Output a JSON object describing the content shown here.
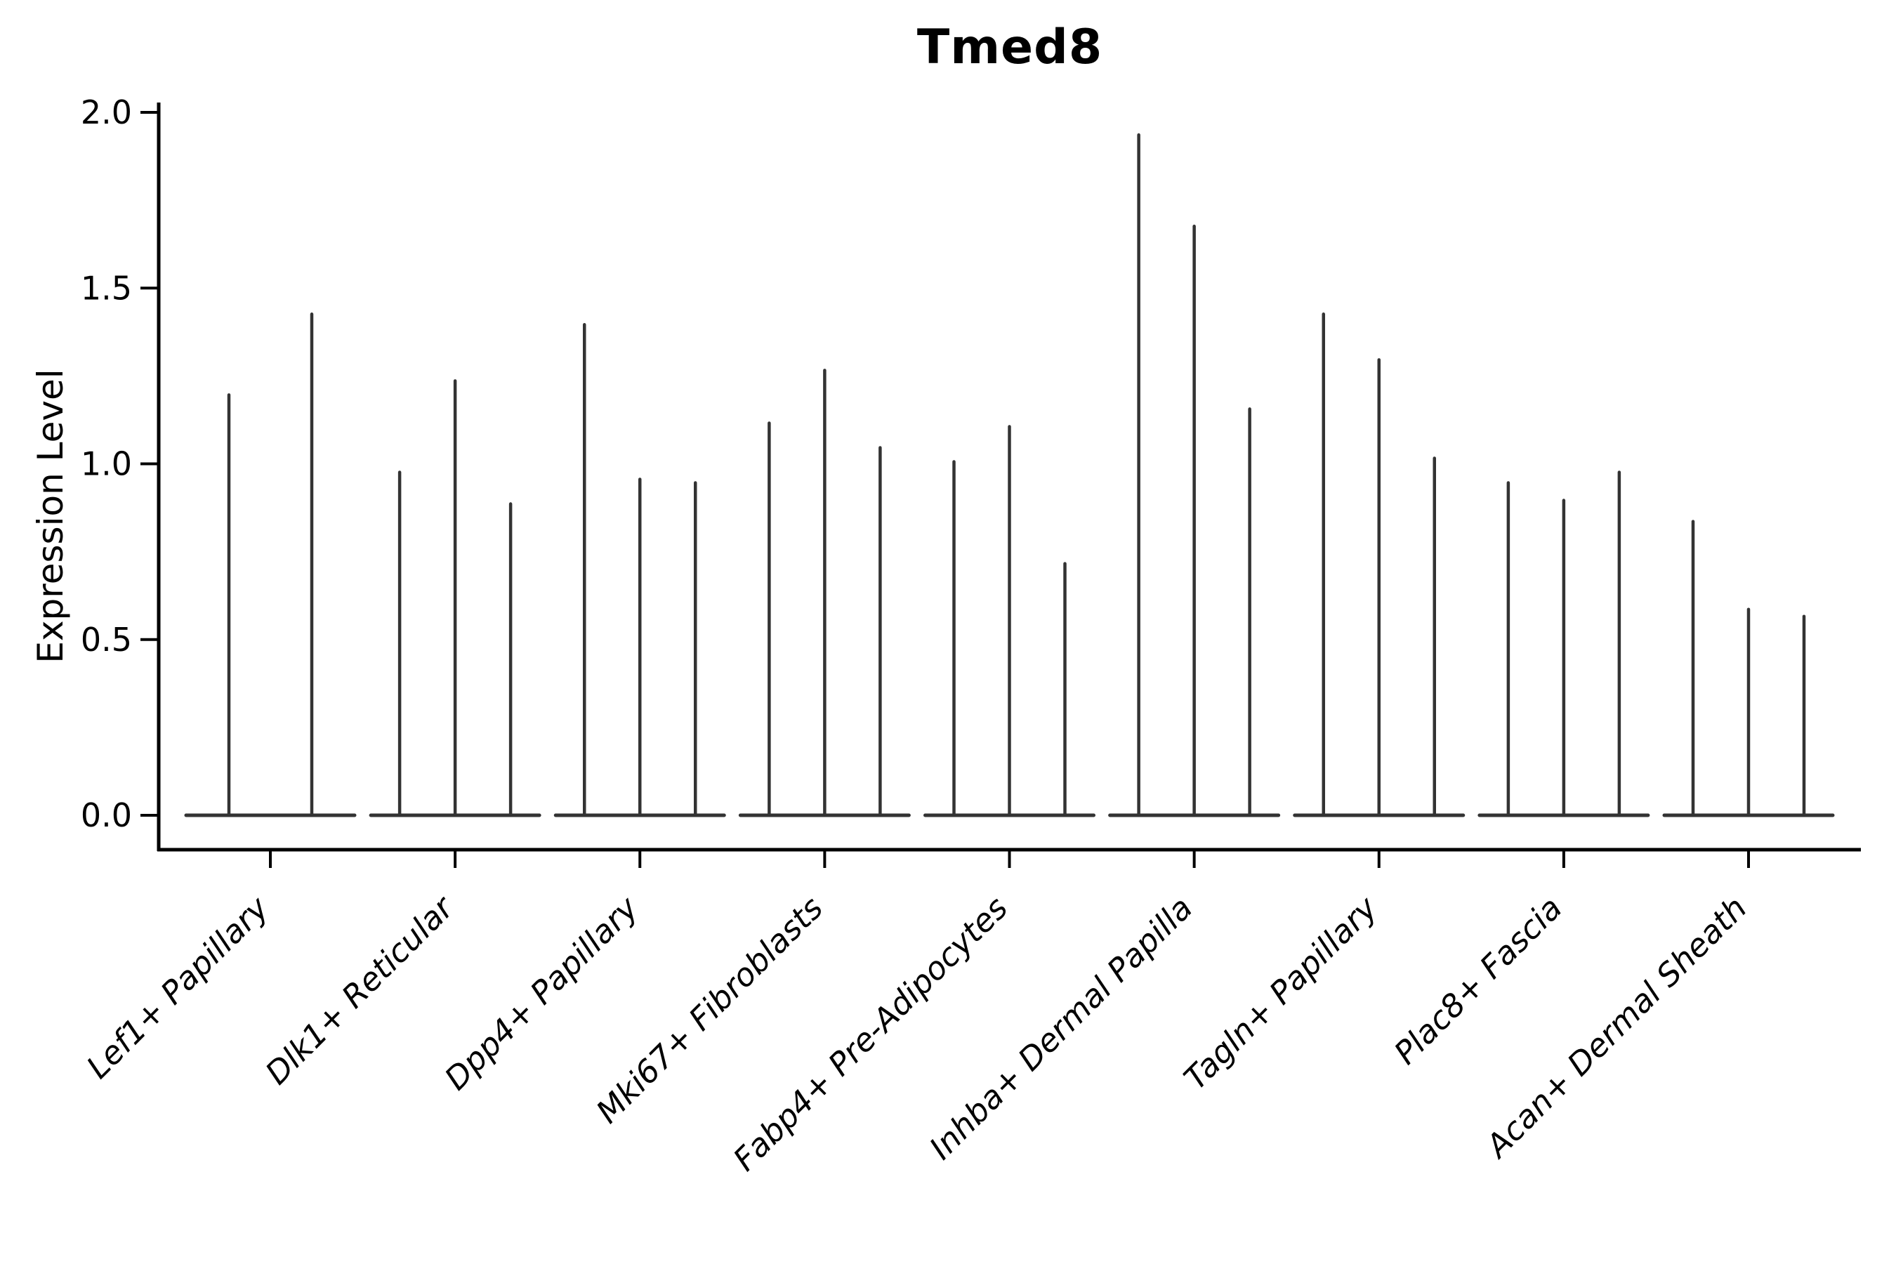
{
  "chart_data": {
    "type": "violin",
    "title": "Tmed8",
    "ylabel": "Expression Level",
    "xlabel": "",
    "ylim": [
      0,
      2.03
    ],
    "yticks": [
      0.0,
      0.5,
      1.0,
      1.5,
      2.0
    ],
    "ytick_labels": [
      "0.0",
      "0.5",
      "1.0",
      "1.5",
      "2.0"
    ],
    "grid": false,
    "legend": "none",
    "categories": [
      "Lef1+ Papillary",
      "Dlk1+ Reticular",
      "Dpp4+ Papillary",
      "Mki67+ Fibroblasts",
      "Fabp4+ Pre-Adipocytes",
      "Inhba+ Dermal Papilla",
      "Tagln+ Papillary",
      "Plac8+ Fascia",
      "Acan+ Dermal Sheath"
    ],
    "groups": [
      {
        "label": "Lef1+ Papillary",
        "violin_max_values": [
          1.2,
          1.43
        ]
      },
      {
        "label": "Dlk1+ Reticular",
        "violin_max_values": [
          0.98,
          1.24,
          0.89
        ]
      },
      {
        "label": "Dpp4+ Papillary",
        "violin_max_values": [
          1.4,
          0.96,
          0.95
        ]
      },
      {
        "label": "Mki67+ Fibroblasts",
        "violin_max_values": [
          1.12,
          1.27,
          1.05
        ]
      },
      {
        "label": "Fabp4+ Pre-Adipocytes",
        "violin_max_values": [
          1.01,
          1.11,
          0.72
        ]
      },
      {
        "label": "Inhba+ Dermal Papilla",
        "violin_max_values": [
          1.94,
          1.68,
          1.16
        ]
      },
      {
        "label": "Tagln+ Papillary",
        "violin_max_values": [
          1.43,
          1.3,
          1.02
        ]
      },
      {
        "label": "Plac8+ Fascia",
        "violin_max_values": [
          0.95,
          0.9,
          0.98
        ]
      },
      {
        "label": "Acan+ Dermal Sheath",
        "violin_max_values": [
          0.84,
          0.59,
          0.57
        ]
      }
    ],
    "colors": {
      "axis": "#000000",
      "text": "#000000",
      "violin": "#333333",
      "background": "#ffffff"
    }
  }
}
